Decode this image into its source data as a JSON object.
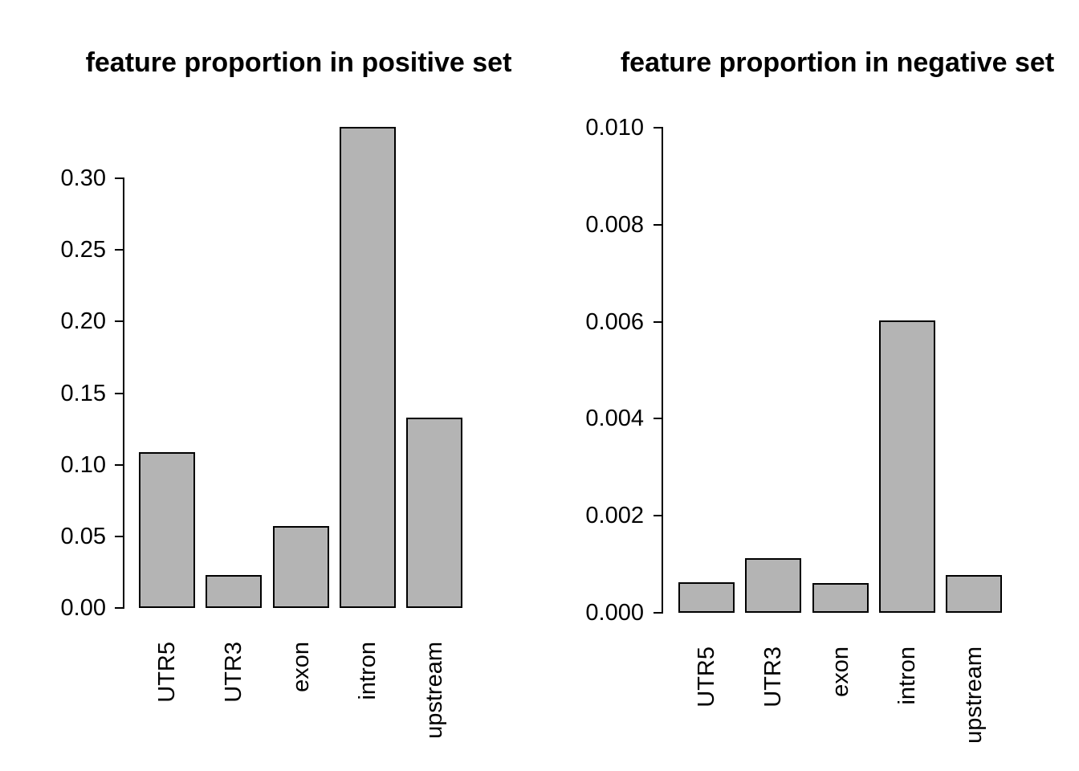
{
  "chart_data": [
    {
      "type": "bar",
      "title": "feature proportion in positive set",
      "categories": [
        "UTR5",
        "UTR3",
        "exon",
        "intron",
        "upstream"
      ],
      "values": [
        0.109,
        0.023,
        0.057,
        0.336,
        0.133
      ],
      "xlabel": "",
      "ylabel": "",
      "ylim": [
        0,
        0.3
      ],
      "yticks": [
        "0.00",
        "0.05",
        "0.10",
        "0.15",
        "0.20",
        "0.25",
        "0.30"
      ],
      "grid": "off",
      "legend": "none",
      "bar_fill": "#b4b4b4",
      "bar_border": "#000000",
      "axis_color": "#000000"
    },
    {
      "type": "bar",
      "title": "feature proportion in negative set",
      "categories": [
        "UTR5",
        "UTR3",
        "exon",
        "intron",
        "upstream"
      ],
      "values": [
        0.00063,
        0.00113,
        0.00061,
        0.00603,
        0.00078
      ],
      "xlabel": "",
      "ylabel": "",
      "ylim": [
        0,
        0.01
      ],
      "yticks": [
        "0.000",
        "0.002",
        "0.004",
        "0.006",
        "0.008",
        "0.010"
      ],
      "grid": "off",
      "legend": "none",
      "bar_fill": "#b4b4b4",
      "bar_border": "#000000",
      "axis_color": "#000000"
    }
  ]
}
